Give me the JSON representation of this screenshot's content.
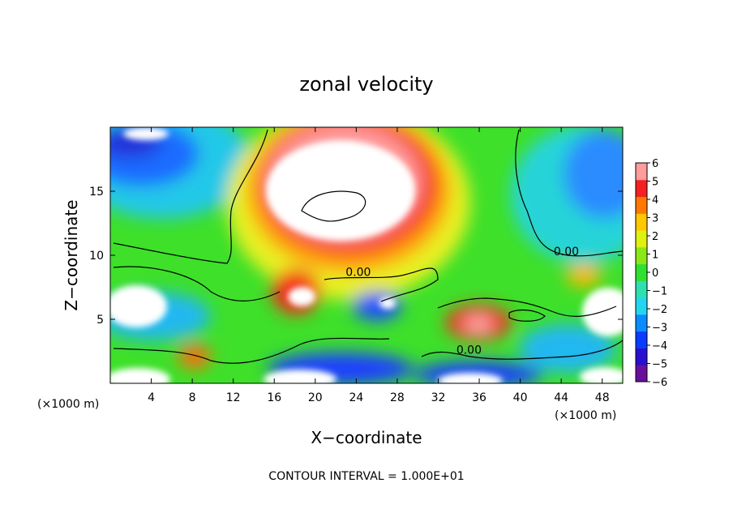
{
  "chart_data": {
    "type": "heatmap",
    "title": "zonal velocity",
    "xlabel": "X−coordinate",
    "ylabel": "Z−coordinate",
    "x_unit": "(×1000 m)",
    "y_unit": "(×1000 m)",
    "xlim": [
      0,
      50
    ],
    "ylim": [
      0,
      20
    ],
    "x_ticks": [
      4,
      8,
      12,
      16,
      20,
      24,
      28,
      32,
      36,
      40,
      44,
      48
    ],
    "y_ticks": [
      5,
      10,
      15
    ],
    "colorbar": {
      "min": -6,
      "max": 6,
      "ticks": [
        6,
        5,
        4,
        3,
        2,
        1,
        0,
        -1,
        -2,
        -3,
        -4,
        -5,
        -6
      ],
      "tick_labels": [
        "6",
        "5",
        "4",
        "3",
        "2",
        "1",
        "0",
        "−1",
        "−2",
        "−3",
        "−4",
        "−5",
        "−6"
      ],
      "colors": [
        "#6a0f9c",
        "#2a0fd0",
        "#0a3cff",
        "#0a8cff",
        "#22d6f0",
        "#2ee0b0",
        "#30e030",
        "#8ae818",
        "#e0f010",
        "#ffc800",
        "#ff7800",
        "#f52020",
        "#ff9c9c"
      ],
      "saturation_color": "#ffffff"
    },
    "contour_labels": [
      {
        "text": "0.00",
        "x": 44.5,
        "z": 10.0
      },
      {
        "text": "0.00",
        "x": 24.2,
        "z": 8.4
      },
      {
        "text": "0.00",
        "x": 35.0,
        "z": 2.3
      }
    ],
    "contour_interval_text": "CONTOUR INTERVAL = 1.000E+01",
    "grid": false
  }
}
